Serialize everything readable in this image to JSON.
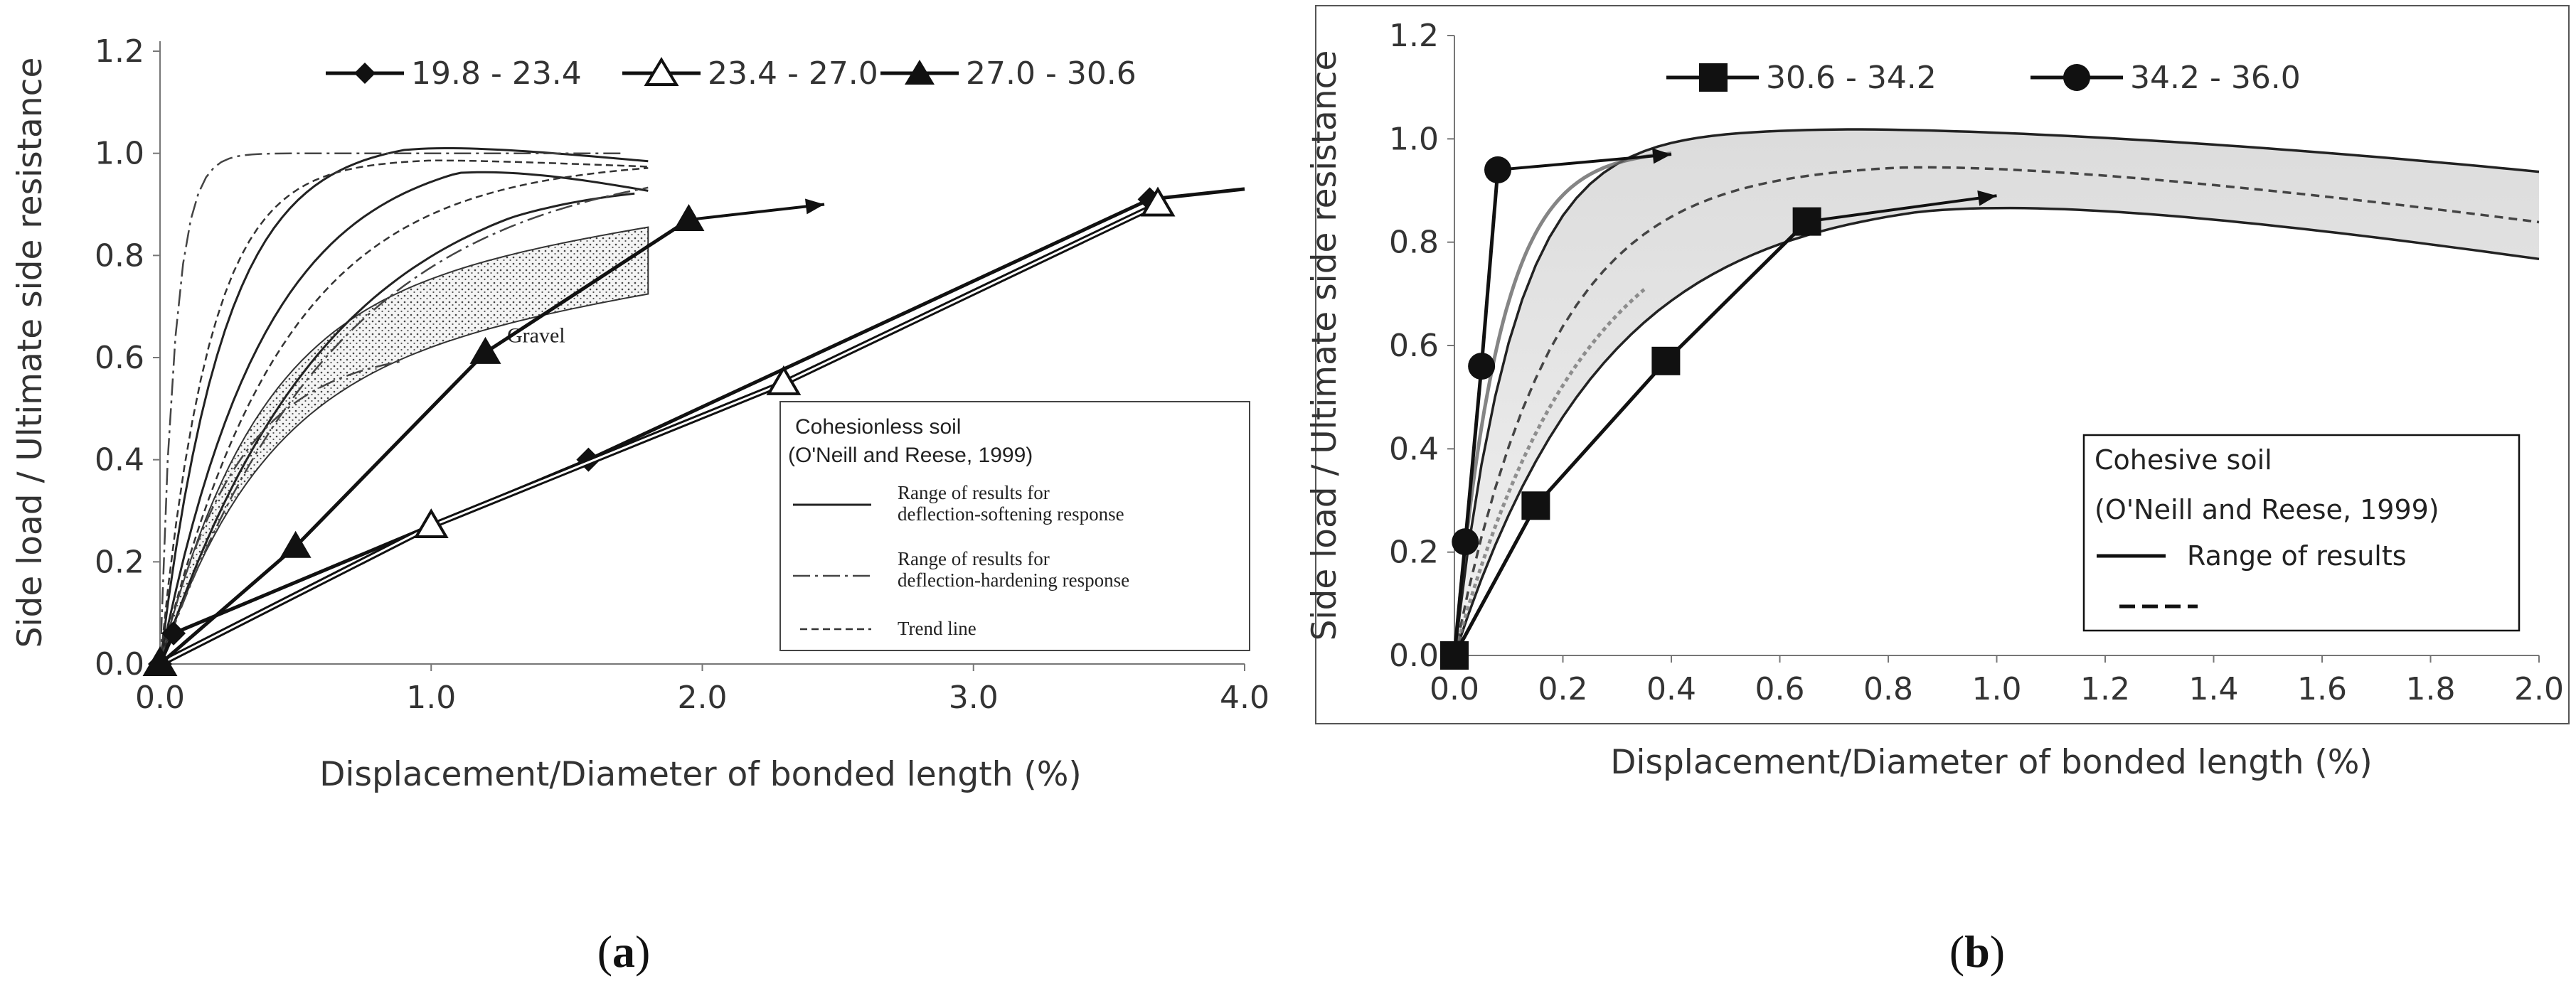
{
  "chart_data": [
    {
      "id": "a",
      "type": "line",
      "subfigure_label": "a",
      "xlabel": "Displacement/Diameter of bonded length (%)",
      "ylabel": "Side load / Ultimate side resistance",
      "xlim": [
        0,
        4.0
      ],
      "ylim": [
        0,
        1.2
      ],
      "xticks": [
        "0.0",
        "1.0",
        "2.0",
        "3.0",
        "4.0"
      ],
      "yticks": [
        "0.0",
        "0.2",
        "0.4",
        "0.6",
        "0.8",
        "1.0",
        "1.2"
      ],
      "legend_position": "top",
      "series": [
        {
          "name": "19.8 - 23.4",
          "marker": "diamond",
          "x": [
            0,
            0.05,
            1.58,
            3.65,
            4.0
          ],
          "y": [
            0,
            0.06,
            0.4,
            0.91,
            0.93
          ]
        },
        {
          "name": "23.4 - 27.0",
          "marker": "open-triangle",
          "x": [
            0,
            1.0,
            2.3,
            3.68
          ],
          "y": [
            0,
            0.27,
            0.55,
            0.9
          ]
        },
        {
          "name": "27.0 - 30.6",
          "marker": "filled-triangle",
          "arrow_to": [
            2.45,
            0.9
          ],
          "x": [
            0,
            0.5,
            1.2,
            1.95
          ],
          "y": [
            0,
            0.23,
            0.61,
            0.87
          ]
        }
      ],
      "reference_box": {
        "title_1": "Cohesionless soil",
        "title_2": "(O'Neill and Reese, 1999)",
        "item1_a": "Range of results for",
        "item1_b": "deflection-softening response",
        "item2_a": "Range of results for",
        "item2_b": "deflection-hardening response",
        "item3": "Trend line"
      },
      "band_label": "Gravel"
    },
    {
      "id": "b",
      "type": "line",
      "subfigure_label": "b",
      "xlabel": "Displacement/Diameter of bonded length (%)",
      "ylabel": "Side load / Ultimate side resistance",
      "xlim": [
        0,
        2.0
      ],
      "ylim": [
        0,
        1.2
      ],
      "xticks": [
        "0.0",
        "0.2",
        "0.4",
        "0.6",
        "0.8",
        "1.0",
        "1.2",
        "1.4",
        "1.6",
        "1.8",
        "2.0"
      ],
      "yticks": [
        "0.0",
        "0.2",
        "0.4",
        "0.6",
        "0.8",
        "1.0",
        "1.2"
      ],
      "legend_position": "top",
      "series": [
        {
          "name": "30.6 - 34.2",
          "marker": "filled-square",
          "arrow_to": [
            1.0,
            0.89
          ],
          "x": [
            0,
            0.15,
            0.39,
            0.65
          ],
          "y": [
            0,
            0.29,
            0.57,
            0.84
          ]
        },
        {
          "name": "34.2 - 36.0",
          "marker": "filled-circle",
          "arrow_to": [
            0.4,
            0.97
          ],
          "x": [
            0,
            0.02,
            0.05,
            0.08
          ],
          "y": [
            0,
            0.22,
            0.56,
            0.94
          ]
        }
      ],
      "reference_box": {
        "title_1": "Cohesive soil",
        "title_2": "(O'Neill and Reese, 1999)",
        "item1": "Range of results"
      }
    }
  ]
}
